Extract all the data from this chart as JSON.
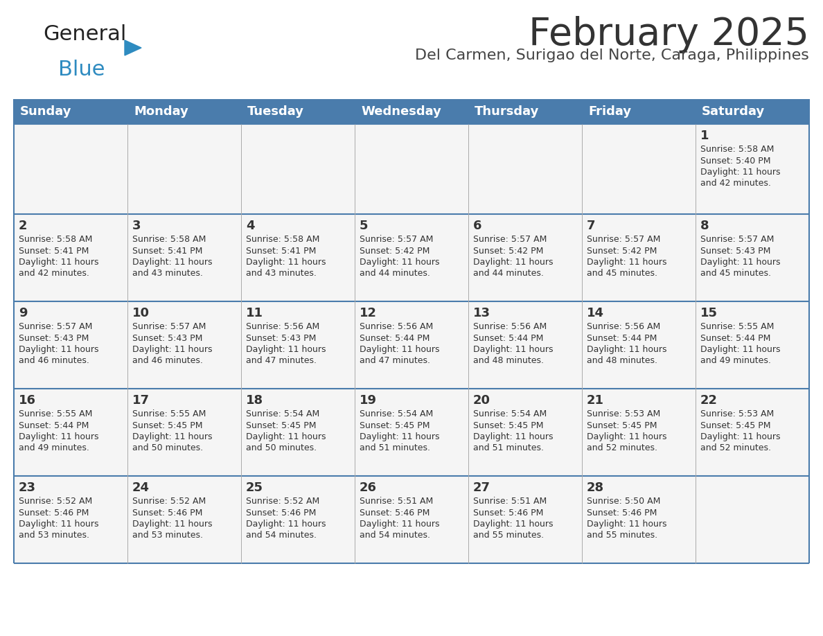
{
  "title": "February 2025",
  "subtitle": "Del Carmen, Surigao del Norte, Caraga, Philippines",
  "header_color": "#4a7cac",
  "header_text_color": "#ffffff",
  "days_of_week": [
    "Sunday",
    "Monday",
    "Tuesday",
    "Wednesday",
    "Thursday",
    "Friday",
    "Saturday"
  ],
  "background_color": "#ffffff",
  "cell_bg": "#f5f5f5",
  "divider_color": "#4a7cac",
  "title_color": "#333333",
  "subtitle_color": "#444444",
  "number_color": "#333333",
  "info_color": "#333333",
  "border_color": "#4a7cac",
  "calendar": [
    [
      null,
      null,
      null,
      null,
      null,
      null,
      1
    ],
    [
      2,
      3,
      4,
      5,
      6,
      7,
      8
    ],
    [
      9,
      10,
      11,
      12,
      13,
      14,
      15
    ],
    [
      16,
      17,
      18,
      19,
      20,
      21,
      22
    ],
    [
      23,
      24,
      25,
      26,
      27,
      28,
      null
    ]
  ],
  "day_data": {
    "1": {
      "sunrise": "5:58 AM",
      "sunset": "5:40 PM",
      "daylight": "11 hours and 42 minutes"
    },
    "2": {
      "sunrise": "5:58 AM",
      "sunset": "5:41 PM",
      "daylight": "11 hours and 42 minutes"
    },
    "3": {
      "sunrise": "5:58 AM",
      "sunset": "5:41 PM",
      "daylight": "11 hours and 43 minutes"
    },
    "4": {
      "sunrise": "5:58 AM",
      "sunset": "5:41 PM",
      "daylight": "11 hours and 43 minutes"
    },
    "5": {
      "sunrise": "5:57 AM",
      "sunset": "5:42 PM",
      "daylight": "11 hours and 44 minutes"
    },
    "6": {
      "sunrise": "5:57 AM",
      "sunset": "5:42 PM",
      "daylight": "11 hours and 44 minutes"
    },
    "7": {
      "sunrise": "5:57 AM",
      "sunset": "5:42 PM",
      "daylight": "11 hours and 45 minutes"
    },
    "8": {
      "sunrise": "5:57 AM",
      "sunset": "5:43 PM",
      "daylight": "11 hours and 45 minutes"
    },
    "9": {
      "sunrise": "5:57 AM",
      "sunset": "5:43 PM",
      "daylight": "11 hours and 46 minutes"
    },
    "10": {
      "sunrise": "5:57 AM",
      "sunset": "5:43 PM",
      "daylight": "11 hours and 46 minutes"
    },
    "11": {
      "sunrise": "5:56 AM",
      "sunset": "5:43 PM",
      "daylight": "11 hours and 47 minutes"
    },
    "12": {
      "sunrise": "5:56 AM",
      "sunset": "5:44 PM",
      "daylight": "11 hours and 47 minutes"
    },
    "13": {
      "sunrise": "5:56 AM",
      "sunset": "5:44 PM",
      "daylight": "11 hours and 48 minutes"
    },
    "14": {
      "sunrise": "5:56 AM",
      "sunset": "5:44 PM",
      "daylight": "11 hours and 48 minutes"
    },
    "15": {
      "sunrise": "5:55 AM",
      "sunset": "5:44 PM",
      "daylight": "11 hours and 49 minutes"
    },
    "16": {
      "sunrise": "5:55 AM",
      "sunset": "5:44 PM",
      "daylight": "11 hours and 49 minutes"
    },
    "17": {
      "sunrise": "5:55 AM",
      "sunset": "5:45 PM",
      "daylight": "11 hours and 50 minutes"
    },
    "18": {
      "sunrise": "5:54 AM",
      "sunset": "5:45 PM",
      "daylight": "11 hours and 50 minutes"
    },
    "19": {
      "sunrise": "5:54 AM",
      "sunset": "5:45 PM",
      "daylight": "11 hours and 51 minutes"
    },
    "20": {
      "sunrise": "5:54 AM",
      "sunset": "5:45 PM",
      "daylight": "11 hours and 51 minutes"
    },
    "21": {
      "sunrise": "5:53 AM",
      "sunset": "5:45 PM",
      "daylight": "11 hours and 52 minutes"
    },
    "22": {
      "sunrise": "5:53 AM",
      "sunset": "5:45 PM",
      "daylight": "11 hours and 52 minutes"
    },
    "23": {
      "sunrise": "5:52 AM",
      "sunset": "5:46 PM",
      "daylight": "11 hours and 53 minutes"
    },
    "24": {
      "sunrise": "5:52 AM",
      "sunset": "5:46 PM",
      "daylight": "11 hours and 53 minutes"
    },
    "25": {
      "sunrise": "5:52 AM",
      "sunset": "5:46 PM",
      "daylight": "11 hours and 54 minutes"
    },
    "26": {
      "sunrise": "5:51 AM",
      "sunset": "5:46 PM",
      "daylight": "11 hours and 54 minutes"
    },
    "27": {
      "sunrise": "5:51 AM",
      "sunset": "5:46 PM",
      "daylight": "11 hours and 55 minutes"
    },
    "28": {
      "sunrise": "5:50 AM",
      "sunset": "5:46 PM",
      "daylight": "11 hours and 55 minutes"
    }
  },
  "logo_general_color": "#222222",
  "logo_blue_color": "#2e8bc0",
  "logo_triangle_color": "#2e8bc0",
  "title_fontsize": 40,
  "subtitle_fontsize": 16,
  "header_fontsize": 13,
  "day_num_fontsize": 13,
  "info_fontsize": 9
}
